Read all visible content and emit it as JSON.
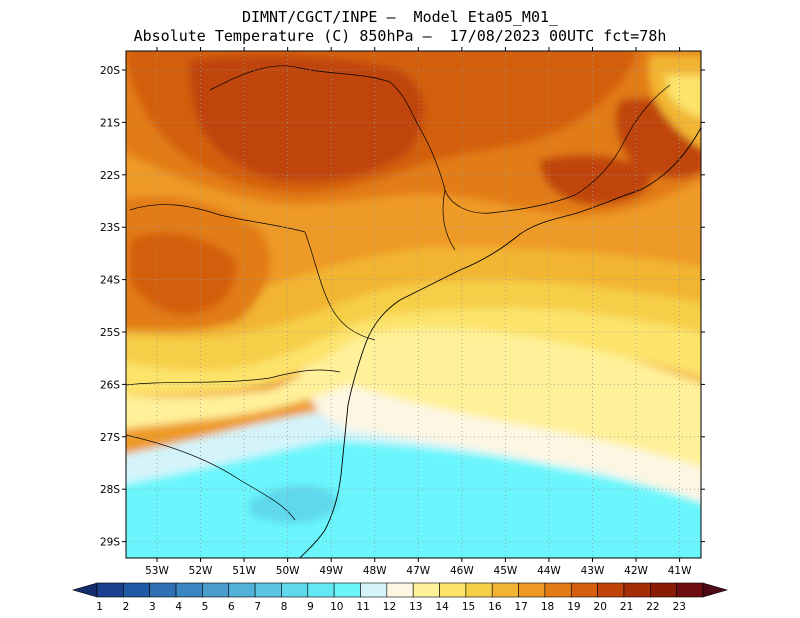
{
  "header": {
    "line1": "DIMNT/CGCT/INPE –  Model Eta05_M01_",
    "line2": "Absolute Temperature (C) 850hPa –  17/08/2023 00UTC fct=78h"
  },
  "map": {
    "lat_labels": [
      "20S",
      "21S",
      "22S",
      "23S",
      "24S",
      "25S",
      "26S",
      "27S",
      "28S",
      "29S"
    ],
    "lon_labels": [
      "53W",
      "52W",
      "51W",
      "50W",
      "49W",
      "48W",
      "47W",
      "46W",
      "45W",
      "44W",
      "43W",
      "42W",
      "41W"
    ]
  },
  "colorbar": {
    "labels": [
      "1",
      "2",
      "3",
      "4",
      "5",
      "6",
      "7",
      "8",
      "9",
      "10",
      "11",
      "12",
      "13",
      "14",
      "15",
      "16",
      "17",
      "18",
      "19",
      "20",
      "21",
      "22",
      "23"
    ],
    "colors": [
      "#1d3f8f",
      "#1f5aa6",
      "#2f6fb3",
      "#3a86c0",
      "#4a9ccc",
      "#52b2d9",
      "#5ac6e4",
      "#5fd8ec",
      "#63e8f4",
      "#6bf6fc",
      "#d4f4fa",
      "#fdf6e3",
      "#fff199",
      "#fce36a",
      "#f6cf48",
      "#f2b533",
      "#ee9a25",
      "#e27c17",
      "#d35e10",
      "#c0440a",
      "#a52e07",
      "#8a1b07",
      "#6e0e10"
    ],
    "low_arrow_color": "#152c6a",
    "high_arrow_color": "#4e0a14"
  }
}
